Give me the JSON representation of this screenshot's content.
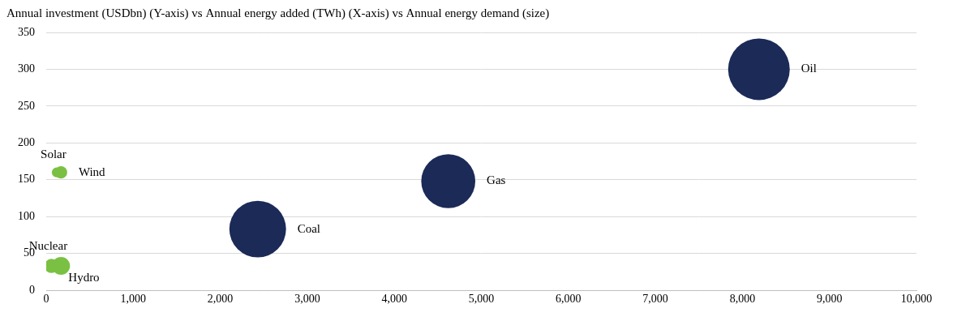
{
  "chart_data": {
    "type": "bubble",
    "title": "Annual investment (USDbn) (Y-axis) vs Annual energy added (TWh) (X-axis) vs Annual energy demand (size)",
    "series": [
      {
        "name": "Solar",
        "color": "#7ac143",
        "x": [
          120
        ],
        "values": [
          160
        ],
        "size": [
          1300
        ]
      },
      {
        "name": "Wind",
        "color": "#7ac143",
        "x": [
          170
        ],
        "values": [
          160
        ],
        "size": [
          2100
        ]
      },
      {
        "name": "Nuclear",
        "color": "#7ac143",
        "x": [
          60
        ],
        "values": [
          33
        ],
        "size": [
          2700
        ]
      },
      {
        "name": "Hydro",
        "color": "#7ac143",
        "x": [
          170
        ],
        "values": [
          33
        ],
        "size": [
          4400
        ]
      },
      {
        "name": "Coal",
        "color": "#1b2a57",
        "x": [
          2430
        ],
        "values": [
          83
        ],
        "size": [
          44000
        ]
      },
      {
        "name": "Gas",
        "color": "#1b2a57",
        "x": [
          4620
        ],
        "values": [
          148
        ],
        "size": [
          40000
        ]
      },
      {
        "name": "Oil",
        "color": "#1b2a57",
        "x": [
          8190
        ],
        "values": [
          300
        ],
        "size": [
          52000
        ]
      }
    ],
    "xlim": [
      0,
      10000
    ],
    "xticks": [
      0,
      {
        "value": 1000,
        "label": "1,000"
      },
      {
        "value": 2000,
        "label": "2,000"
      },
      {
        "value": 3000,
        "label": "3,000"
      },
      {
        "value": 4000,
        "label": "4,000"
      },
      {
        "value": 5000,
        "label": "5,000"
      },
      {
        "value": 6000,
        "label": "6,000"
      },
      {
        "value": 7000,
        "label": "7,000"
      },
      {
        "value": 8000,
        "label": "8,000"
      },
      {
        "value": 9000,
        "label": "9,000"
      },
      {
        "value": 10000,
        "label": "10,000"
      }
    ],
    "ylim": [
      0,
      350
    ],
    "yticks": [
      0,
      50,
      100,
      150,
      200,
      250,
      300,
      350
    ],
    "grid": "y"
  }
}
